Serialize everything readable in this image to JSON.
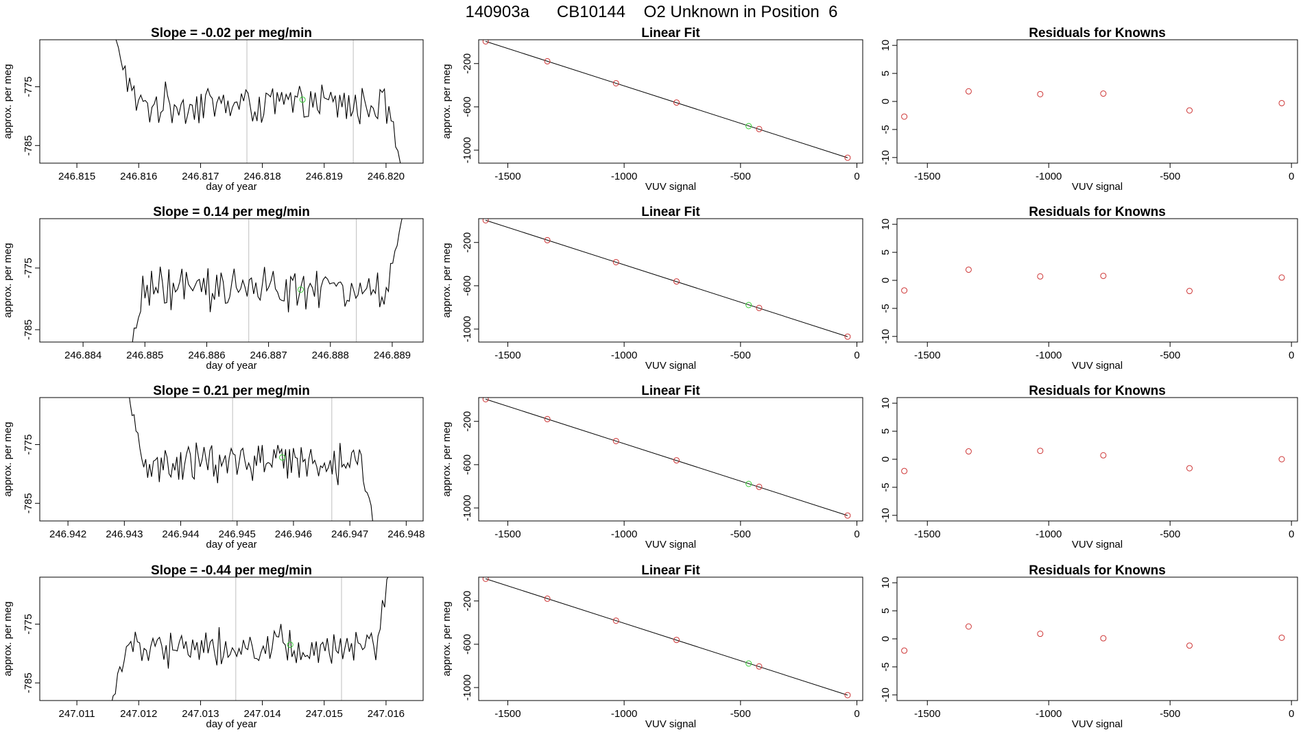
{
  "title": "140903a      CB10144    O2 Unknown in Position  6",
  "colors": {
    "trace": "#000000",
    "known": "#cd3333",
    "unknown": "#32cd32",
    "boundary": "#bebebe",
    "fitline": "#000000"
  },
  "chart_data": [
    {
      "type": "line",
      "title": "Slope =  -0.02  per meg/min",
      "xlabel": "day of year",
      "ylabel": "approx. per meg",
      "xlim": [
        246.8144,
        246.8206
      ],
      "ylim": [
        -788,
        -767
      ],
      "xticks": [
        "246.815",
        "246.816",
        "246.817",
        "246.818",
        "246.819",
        "246.820"
      ],
      "yticks": [
        "-775",
        "-785"
      ],
      "trace_x_range": [
        246.8156,
        246.8203
      ],
      "trace_start_y": -766,
      "trace_end_y": -791,
      "trace_mean": -778.0,
      "trace_amplitude": 2.8,
      "boundaries": [
        246.81775,
        246.81947
      ],
      "unknown_point": {
        "x": 246.81865,
        "y": -777.2
      }
    },
    {
      "type": "scatter",
      "title": "Linear Fit",
      "xlabel": "VUV signal",
      "ylabel": "approx. per meg",
      "xlim": [
        -1625,
        25
      ],
      "ylim": [
        -1120,
        20
      ],
      "xticks": [
        "-1500",
        "-1000",
        "-500",
        "0"
      ],
      "yticks": [
        "-200",
        "-600",
        "-1000"
      ],
      "knowns": [
        {
          "x": -1595,
          "y": 5
        },
        {
          "x": -1330,
          "y": -179
        },
        {
          "x": -1035,
          "y": -382
        },
        {
          "x": -775,
          "y": -560
        },
        {
          "x": -420,
          "y": -805
        },
        {
          "x": -40,
          "y": -1070
        }
      ],
      "unknown": {
        "x": -465,
        "y": -778
      },
      "fit": {
        "x": [
          -1595,
          -40
        ],
        "y": [
          5,
          -1070
        ]
      }
    },
    {
      "type": "scatter",
      "title": "Residuals for Knowns",
      "xlabel": "VUV signal",
      "ylabel": "",
      "xlim": [
        -1625,
        25
      ],
      "ylim": [
        -11,
        11
      ],
      "xticks": [
        "-1500",
        "-1000",
        "-500",
        "0"
      ],
      "yticks": [
        "10",
        "5",
        "0",
        "-5",
        "-10"
      ],
      "points": [
        {
          "x": -1595,
          "y": -2.7
        },
        {
          "x": -1330,
          "y": 1.8
        },
        {
          "x": -1035,
          "y": 1.3
        },
        {
          "x": -775,
          "y": 1.4
        },
        {
          "x": -420,
          "y": -1.6
        },
        {
          "x": -40,
          "y": -0.3
        }
      ]
    },
    {
      "type": "line",
      "title": "Slope =  0.14  per meg/min",
      "xlabel": "day of year",
      "ylabel": "approx. per meg",
      "xlim": [
        246.8833,
        246.8895
      ],
      "ylim": [
        -787,
        -767
      ],
      "xticks": [
        "246.884",
        "246.885",
        "246.886",
        "246.887",
        "246.888",
        "246.889"
      ],
      "yticks": [
        "-775",
        "-785"
      ],
      "trace_x_range": [
        246.88465,
        246.88922
      ],
      "trace_start_y": -794,
      "trace_end_y": -764,
      "trace_mean": -778.5,
      "trace_amplitude": 2.8,
      "boundaries": [
        246.88668,
        246.88842
      ],
      "unknown_point": {
        "x": 246.88752,
        "y": -778.5
      }
    },
    {
      "type": "scatter",
      "title": "Linear Fit",
      "xlabel": "VUV signal",
      "ylabel": "approx. per meg",
      "xlim": [
        -1625,
        25
      ],
      "ylim": [
        -1120,
        20
      ],
      "xticks": [
        "-1500",
        "-1000",
        "-500",
        "0"
      ],
      "yticks": [
        "-200",
        "-600",
        "-1000"
      ],
      "knowns": [
        {
          "x": -1595,
          "y": 5
        },
        {
          "x": -1330,
          "y": -179
        },
        {
          "x": -1035,
          "y": -382
        },
        {
          "x": -775,
          "y": -560
        },
        {
          "x": -420,
          "y": -805
        },
        {
          "x": -40,
          "y": -1070
        }
      ],
      "unknown": {
        "x": -465,
        "y": -778
      },
      "fit": {
        "x": [
          -1595,
          -40
        ],
        "y": [
          5,
          -1070
        ]
      }
    },
    {
      "type": "scatter",
      "title": "Residuals for Knowns",
      "xlabel": "VUV signal",
      "ylabel": "",
      "xlim": [
        -1625,
        25
      ],
      "ylim": [
        -11,
        11
      ],
      "xticks": [
        "-1500",
        "-1000",
        "-500",
        "0"
      ],
      "yticks": [
        "10",
        "5",
        "0",
        "-5",
        "-10"
      ],
      "points": [
        {
          "x": -1595,
          "y": -1.8
        },
        {
          "x": -1330,
          "y": 1.9
        },
        {
          "x": -1035,
          "y": 0.7
        },
        {
          "x": -775,
          "y": 0.8
        },
        {
          "x": -420,
          "y": -1.9
        },
        {
          "x": -40,
          "y": 0.5
        }
      ]
    },
    {
      "type": "line",
      "title": "Slope =  0.21  per meg/min",
      "xlabel": "day of year",
      "ylabel": "approx. per meg",
      "xlim": [
        246.9415,
        246.9483
      ],
      "ylim": [
        -788,
        -767
      ],
      "xticks": [
        "246.942",
        "246.943",
        "246.944",
        "246.945",
        "246.946",
        "246.947",
        "246.948"
      ],
      "yticks": [
        "-775",
        "-785"
      ],
      "trace_x_range": [
        246.943,
        246.94748
      ],
      "trace_start_y": -762,
      "trace_end_y": -791,
      "trace_mean": -778.3,
      "trace_amplitude": 2.8,
      "boundaries": [
        246.94492,
        246.94668
      ],
      "unknown_point": {
        "x": 246.9458,
        "y": -777.2
      }
    },
    {
      "type": "scatter",
      "title": "Linear Fit",
      "xlabel": "VUV signal",
      "ylabel": "approx. per meg",
      "xlim": [
        -1625,
        25
      ],
      "ylim": [
        -1120,
        20
      ],
      "xticks": [
        "-1500",
        "-1000",
        "-500",
        "0"
      ],
      "yticks": [
        "-200",
        "-600",
        "-1000"
      ],
      "knowns": [
        {
          "x": -1595,
          "y": 5
        },
        {
          "x": -1330,
          "y": -179
        },
        {
          "x": -1035,
          "y": -382
        },
        {
          "x": -775,
          "y": -560
        },
        {
          "x": -420,
          "y": -805
        },
        {
          "x": -40,
          "y": -1070
        }
      ],
      "unknown": {
        "x": -465,
        "y": -778
      },
      "fit": {
        "x": [
          -1595,
          -40
        ],
        "y": [
          5,
          -1070
        ]
      }
    },
    {
      "type": "scatter",
      "title": "Residuals for Knowns",
      "xlabel": "VUV signal",
      "ylabel": "",
      "xlim": [
        -1625,
        25
      ],
      "ylim": [
        -11,
        11
      ],
      "xticks": [
        "-1500",
        "-1000",
        "-500",
        "0"
      ],
      "yticks": [
        "10",
        "5",
        "0",
        "-5",
        "-10"
      ],
      "points": [
        {
          "x": -1595,
          "y": -2.1
        },
        {
          "x": -1330,
          "y": 1.4
        },
        {
          "x": -1035,
          "y": 1.5
        },
        {
          "x": -775,
          "y": 0.7
        },
        {
          "x": -420,
          "y": -1.6
        },
        {
          "x": -40,
          "y": 0.0
        }
      ]
    },
    {
      "type": "line",
      "title": "Slope =  -0.44  per meg/min",
      "xlabel": "day of year",
      "ylabel": "approx. per meg",
      "xlim": [
        247.0104,
        247.0166
      ],
      "ylim": [
        -788,
        -767
      ],
      "xticks": [
        "247.011",
        "247.012",
        "247.013",
        "247.014",
        "247.015",
        "247.016"
      ],
      "yticks": [
        "-775",
        "-785"
      ],
      "trace_x_range": [
        247.01148,
        247.01612
      ],
      "trace_start_y": -792,
      "trace_end_y": -762,
      "trace_mean": -778.8,
      "trace_amplitude": 2.8,
      "boundaries": [
        247.01357,
        247.01528
      ],
      "unknown_point": {
        "x": 247.01445,
        "y": -778.5
      }
    },
    {
      "type": "scatter",
      "title": "Linear Fit",
      "xlabel": "VUV signal",
      "ylabel": "approx. per meg",
      "xlim": [
        -1625,
        25
      ],
      "ylim": [
        -1120,
        20
      ],
      "xticks": [
        "-1500",
        "-1000",
        "-500",
        "0"
      ],
      "yticks": [
        "-200",
        "-600",
        "-1000"
      ],
      "knowns": [
        {
          "x": -1595,
          "y": 5
        },
        {
          "x": -1330,
          "y": -179
        },
        {
          "x": -1035,
          "y": -382
        },
        {
          "x": -775,
          "y": -560
        },
        {
          "x": -420,
          "y": -805
        },
        {
          "x": -40,
          "y": -1070
        }
      ],
      "unknown": {
        "x": -465,
        "y": -778
      },
      "fit": {
        "x": [
          -1595,
          -40
        ],
        "y": [
          5,
          -1070
        ]
      }
    },
    {
      "type": "scatter",
      "title": "Residuals for Knowns",
      "xlabel": "VUV signal",
      "ylabel": "",
      "xlim": [
        -1625,
        25
      ],
      "ylim": [
        -11,
        11
      ],
      "xticks": [
        "-1500",
        "-1000",
        "-500",
        "0"
      ],
      "yticks": [
        "10",
        "5",
        "0",
        "-5",
        "-10"
      ],
      "points": [
        {
          "x": -1595,
          "y": -2.1
        },
        {
          "x": -1330,
          "y": 2.2
        },
        {
          "x": -1035,
          "y": 0.9
        },
        {
          "x": -775,
          "y": 0.1
        },
        {
          "x": -420,
          "y": -1.2
        },
        {
          "x": -40,
          "y": 0.2
        }
      ]
    }
  ]
}
